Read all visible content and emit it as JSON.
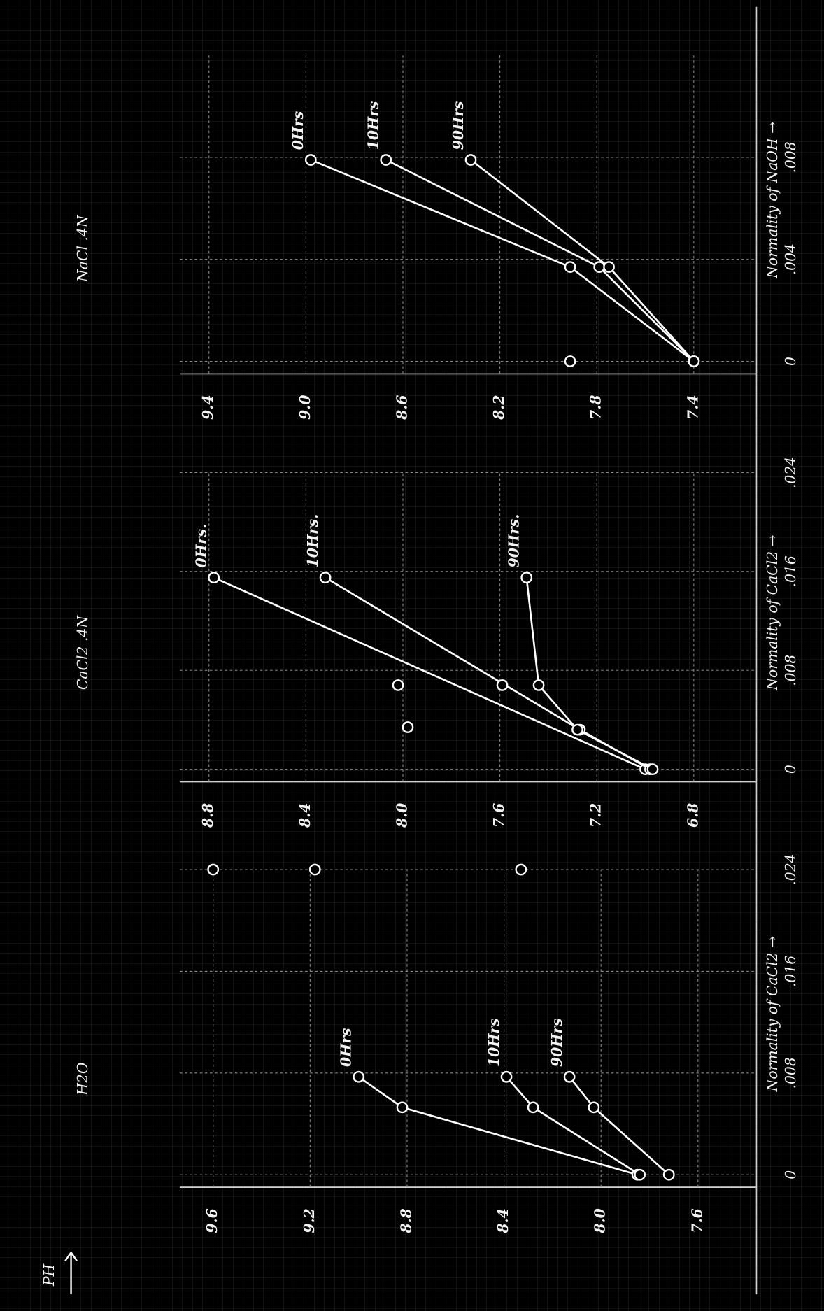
{
  "chart_data": [
    {
      "type": "line",
      "title": "H2O",
      "x_label": "Normality of CaCl2 →",
      "y_label": "PH",
      "xlim": [
        0,
        0.024
      ],
      "xticks": [
        0,
        {
          "value": 0.008,
          "label": ".008"
        },
        {
          "value": 0.016,
          "label": ".016"
        },
        {
          "value": 0.024,
          "label": ".024"
        }
      ],
      "ylim": [
        7.6,
        9.6
      ],
      "yticks": [
        7.6,
        {
          "value": 8,
          "label": "8.0"
        },
        8.4,
        8.8,
        9.2,
        9.6
      ],
      "series": [
        {
          "name": "0Hrs",
          "color": "#ffffff",
          "x": [
            0,
            0.0053,
            0.0077
          ],
          "values": [
            7.85,
            8.82,
            9.0
          ]
        },
        {
          "name": "10Hrs",
          "color": "#ffffff",
          "x": [
            0,
            0.0053,
            0.0077
          ],
          "values": [
            7.84,
            8.28,
            8.39
          ]
        },
        {
          "name": "90Hrs",
          "color": "#ffffff",
          "x": [
            0,
            0.0053,
            0.0077
          ],
          "values": [
            7.72,
            8.03,
            8.13
          ]
        }
      ],
      "points": {
        "x": [
          0.024,
          0.024,
          0.024
        ],
        "values": [
          9.6,
          9.18,
          8.33
        ]
      }
    },
    {
      "type": "line",
      "title": "CaCl2 .4N",
      "x_label": "Normality of CaCl2 →",
      "xlim": [
        0,
        0.024
      ],
      "xticks": [
        0,
        {
          "value": 0.008,
          "label": ".008"
        },
        {
          "value": 0.016,
          "label": ".016"
        },
        {
          "value": 0.024,
          "label": ".024"
        }
      ],
      "ylim": [
        6.8,
        8.8
      ],
      "yticks": [
        6.8,
        7.2,
        7.6,
        {
          "value": 8,
          "label": "8.0"
        },
        8.4,
        8.8
      ],
      "series": [
        {
          "name": "0Hrs.",
          "color": "#ffffff",
          "x": [
            0,
            0.0155
          ],
          "values": [
            7.0,
            8.78
          ]
        },
        {
          "name": "10Hrs.",
          "color": "#ffffff",
          "x": [
            0,
            0.0032,
            0.0155
          ],
          "values": [
            6.98,
            7.27,
            8.32
          ]
        },
        {
          "name": "90Hrs.",
          "color": "#ffffff",
          "x": [
            0,
            0.0032,
            0.0068,
            0.0155
          ],
          "values": [
            6.97,
            7.28,
            7.44,
            7.49
          ]
        }
      ],
      "points": {
        "x": [
          0.0034,
          0.0068,
          0.0068
        ],
        "values": [
          7.98,
          8.02,
          7.59
        ]
      }
    },
    {
      "type": "line",
      "title": "NaCl .4N",
      "x_label": "Normality of NaOH →",
      "xlim": [
        0,
        0.012
      ],
      "xticks": [
        0,
        {
          "value": 0.004,
          "label": ".004"
        },
        {
          "value": 0.008,
          "label": ".008"
        }
      ],
      "ylim": [
        7.4,
        9.4
      ],
      "yticks": [
        7.4,
        7.8,
        8.2,
        8.6,
        {
          "value": 9,
          "label": "9.0"
        },
        9.4
      ],
      "series": [
        {
          "name": "0Hrs",
          "color": "#ffffff",
          "x": [
            0,
            0.0037,
            0.0079
          ],
          "values": [
            7.4,
            7.91,
            8.98
          ]
        },
        {
          "name": "10Hrs",
          "color": "#ffffff",
          "x": [
            0,
            0.0037,
            0.0079
          ],
          "values": [
            7.4,
            7.79,
            8.67
          ]
        },
        {
          "name": "90Hrs",
          "color": "#ffffff",
          "x": [
            0,
            0.0037,
            0.0079
          ],
          "values": [
            7.4,
            7.75,
            8.32
          ]
        }
      ],
      "points": {
        "x": [
          0
        ],
        "values": [
          7.91
        ]
      }
    }
  ]
}
